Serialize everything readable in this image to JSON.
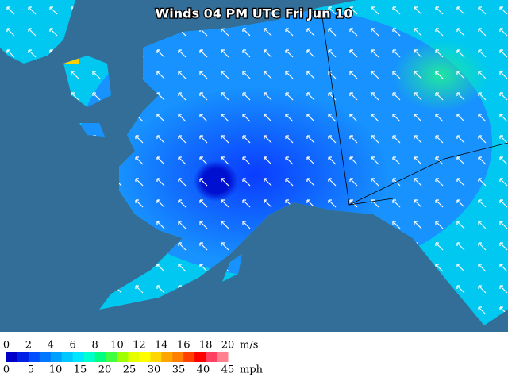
{
  "title": "Winds 04 PM UTC Fri Jun 10",
  "legend": {
    "ms_unit": "m/s",
    "mph_unit": "mph",
    "ms_labels": [
      0,
      2,
      4,
      6,
      8,
      10,
      12,
      14,
      16,
      18,
      20
    ],
    "mph_labels": [
      0,
      5,
      10,
      15,
      20,
      25,
      30,
      35,
      40,
      45
    ],
    "colors": [
      "#0000c8",
      "#0020e6",
      "#0050ff",
      "#0078ff",
      "#00a0ff",
      "#00c8ff",
      "#00e6ff",
      "#00ffd0",
      "#00ff80",
      "#40ff40",
      "#a0ff00",
      "#e6ff00",
      "#ffff00",
      "#ffd700",
      "#ffa500",
      "#ff8000",
      "#ff4000",
      "#ff0000",
      "#ff4060",
      "#ff8090"
    ]
  }
}
